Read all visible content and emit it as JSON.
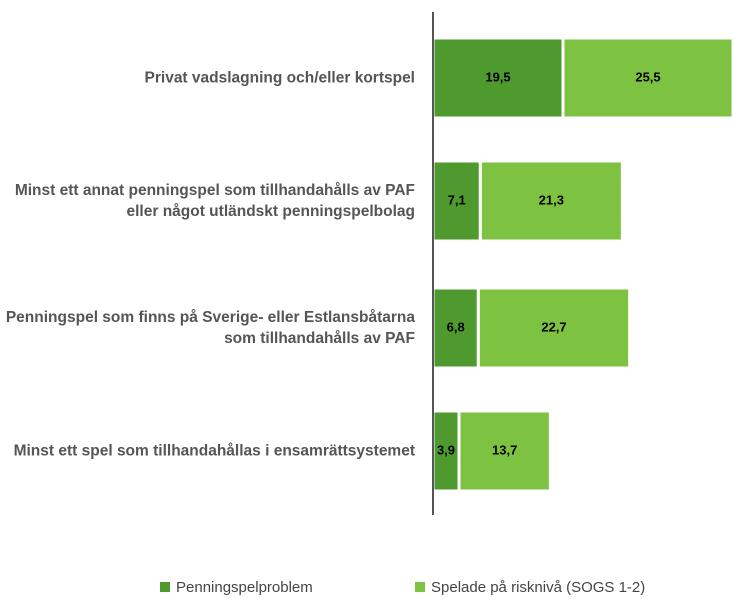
{
  "chart_data": {
    "type": "bar",
    "orientation": "horizontal",
    "stacked": true,
    "categories": [
      "Privat vadslagning och/eller kortspel",
      "Minst ett annat penningspel som tillhandahålls av PAF eller något utländskt penningspelbolag",
      "Penningspel som finns på Sverige- eller Estlansbåtarna som tillhandahålls av PAF",
      "Minst ett spel som tillhandahållas i ensamrättsystemet"
    ],
    "series": [
      {
        "name": "Penningspelproblem",
        "color": "#4e9a2e",
        "values": [
          19.5,
          7.1,
          6.8,
          3.9
        ],
        "value_labels": [
          "19,5",
          "7,1",
          "6,8",
          "3,9"
        ]
      },
      {
        "name": "Spelade på risknivå (SOGS 1-2)",
        "color": "#7ec242",
        "values": [
          25.5,
          21.3,
          22.7,
          13.7
        ],
        "value_labels": [
          "25,5",
          "21,3",
          "22,7",
          "13,7"
        ]
      }
    ],
    "legend": "bottom"
  }
}
